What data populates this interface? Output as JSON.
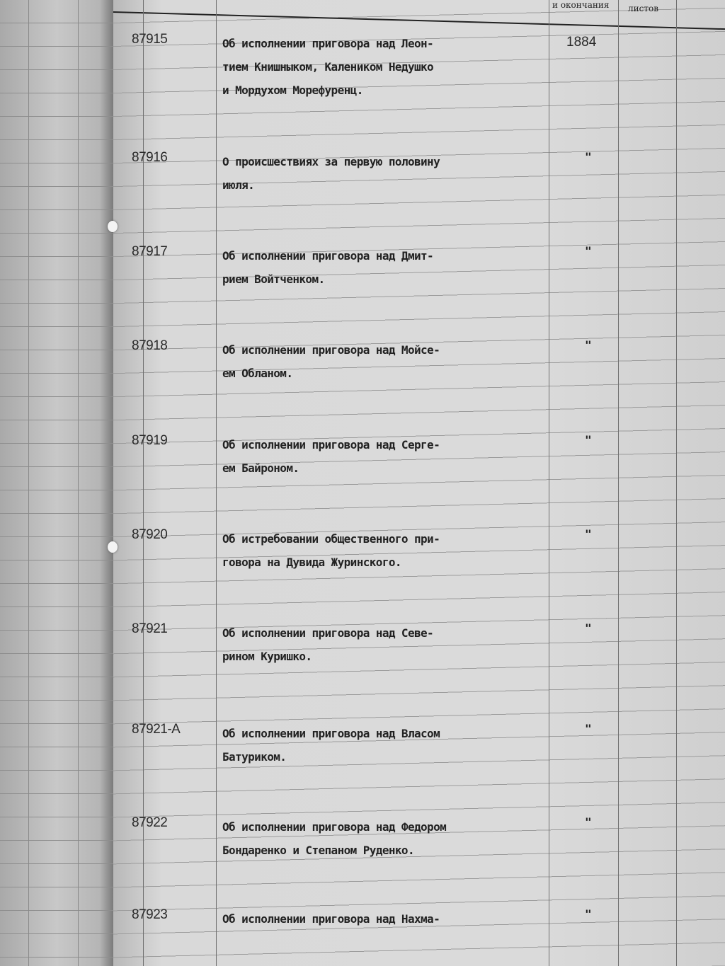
{
  "header": {
    "col_dates": "и окончания",
    "col_sheets": "листов"
  },
  "entries": [
    {
      "number": "87915",
      "lines": [
        "Об исполнении приговора над Леон-",
        "тием Книшныком, Калеником Недушко",
        "и Мордухом Морефуренц."
      ],
      "date": "1884",
      "ditto": ""
    },
    {
      "number": "87916",
      "lines": [
        "О происшествиях за первую половину",
        "июля."
      ],
      "date": "",
      "ditto": "\""
    },
    {
      "number": "87917",
      "lines": [
        "Об исполнении приговора над Дмит-",
        "рием Войтченком."
      ],
      "date": "",
      "ditto": "\""
    },
    {
      "number": "87918",
      "lines": [
        "Об исполнении приговора над Мойсе-",
        "ем Обланом."
      ],
      "date": "",
      "ditto": "\""
    },
    {
      "number": "87919",
      "lines": [
        "Об исполнении приговора над Серге-",
        "ем Байроном."
      ],
      "date": "",
      "ditto": "\""
    },
    {
      "number": "87920",
      "lines": [
        "Об истребовании общественного при-",
        "говора на Дувида Журинского."
      ],
      "date": "",
      "ditto": "\""
    },
    {
      "number": "87921",
      "lines": [
        "Об исполнении приговора над Севе-",
        "рином Куришко."
      ],
      "date": "",
      "ditto": "\""
    },
    {
      "number": "87921-А",
      "lines": [
        "Об исполнении приговора над Власом",
        "Батуриком."
      ],
      "date": "",
      "ditto": "\""
    },
    {
      "number": "87922",
      "lines": [
        "Об исполнении приговора над Федором",
        "Бондаренко и Степаном Руденко."
      ],
      "date": "",
      "ditto": "\""
    },
    {
      "number": "87923",
      "lines": [
        "Об исполнении приговора над Нахма-"
      ],
      "date": "",
      "ditto": "\""
    }
  ]
}
